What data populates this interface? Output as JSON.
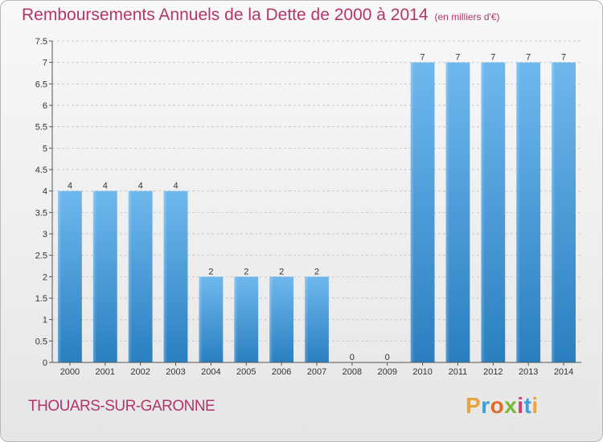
{
  "header": {
    "title": "Remboursements Annuels de la Dette de 2000 à 2014",
    "unit": "(en milliers d'€)"
  },
  "footer": {
    "commune": "THOUARS-SUR-GARONNE",
    "logo_letters": [
      "P",
      "r",
      "o",
      "x",
      "i",
      "t",
      "i"
    ],
    "logo_colors": [
      "#e8a33b",
      "#3ea0da",
      "#e06a2b",
      "#7bb83a",
      "#d23b6e",
      "#3ea0da",
      "#e8a33b"
    ]
  },
  "colors": {
    "bar": "#4a9fdd",
    "bar_light": "#6fb8ee",
    "bar_dark": "#2a7fc0",
    "grid": "#c8c8c8",
    "axis": "#555555",
    "accent": "#b5356a"
  },
  "chart_data": {
    "type": "bar",
    "categories": [
      "2000",
      "2001",
      "2002",
      "2003",
      "2004",
      "2005",
      "2006",
      "2007",
      "2008",
      "2009",
      "2010",
      "2011",
      "2012",
      "2013",
      "2014"
    ],
    "values": [
      4,
      4,
      4,
      4,
      2,
      2,
      2,
      2,
      0,
      0,
      7,
      7,
      7,
      7,
      7
    ],
    "data_labels": [
      "4",
      "4",
      "4",
      "4",
      "2",
      "2",
      "2",
      "2",
      "0",
      "0",
      "7",
      "7",
      "7",
      "7",
      "7"
    ],
    "y_ticks": [
      0,
      0.5,
      1,
      1.5,
      2,
      2.5,
      3,
      3.5,
      4,
      4.5,
      5,
      5.5,
      6,
      6.5,
      7,
      7.5
    ],
    "y_tick_labels": [
      "0",
      "0.5",
      "1",
      "1.5",
      "2",
      "2.5",
      "3",
      "3.5",
      "4",
      "4.5",
      "5",
      "5.5",
      "6",
      "6.5",
      "7",
      "7.5"
    ],
    "ylim": [
      0,
      7.5
    ],
    "grid": true,
    "title": "Remboursements Annuels de la Dette de 2000 à 2014",
    "xlabel": "",
    "ylabel": ""
  }
}
